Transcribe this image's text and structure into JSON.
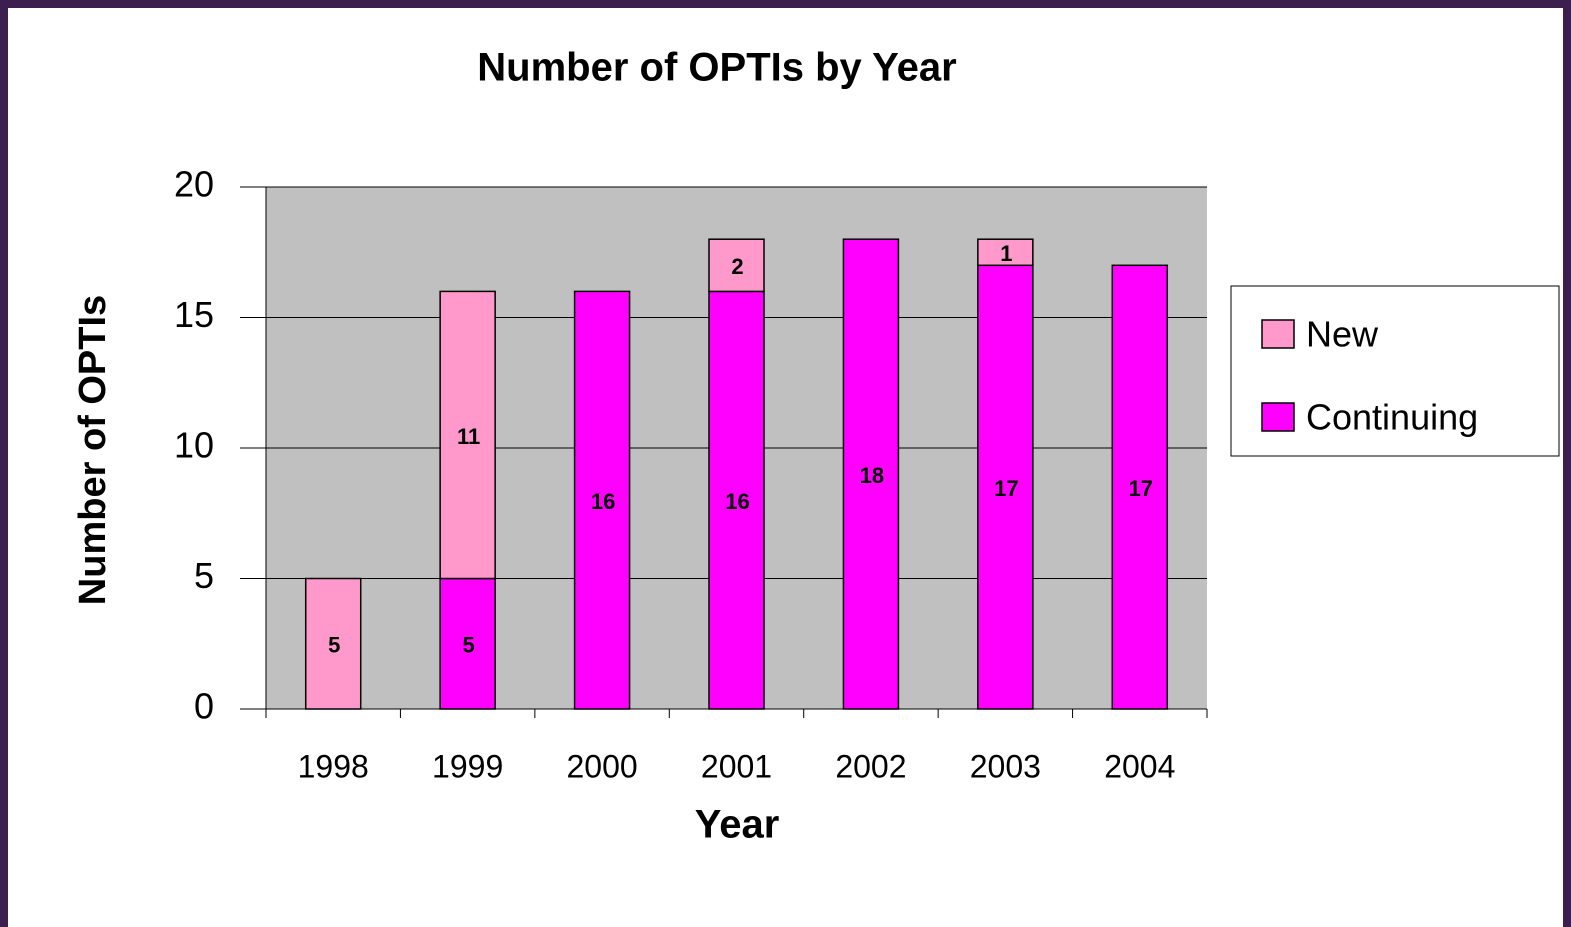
{
  "chart_data": {
    "type": "stacked_bar",
    "title": "Number of OPTIs by Year",
    "x_label": "Year",
    "y_label": "Number of OPTIs",
    "categories": [
      "1998",
      "1999",
      "2000",
      "2001",
      "2002",
      "2003",
      "2004"
    ],
    "series": [
      {
        "name": "Continuing",
        "color": "#ff00ff",
        "values": [
          null,
          5,
          16,
          16,
          18,
          17,
          17
        ]
      },
      {
        "name": "New",
        "color": "#ff99cc",
        "values": [
          5,
          11,
          null,
          2,
          null,
          1,
          null
        ]
      }
    ],
    "ylim": [
      0,
      20
    ],
    "yticks": [
      0,
      5,
      10,
      15,
      20
    ],
    "grid": true,
    "legend": "right"
  }
}
